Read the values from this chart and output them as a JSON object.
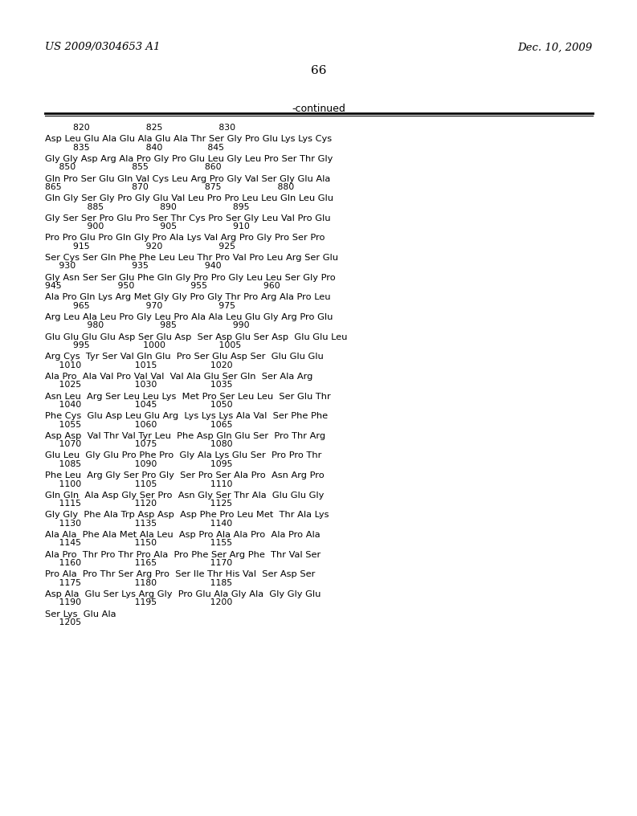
{
  "header_left": "US 2009/0304653 A1",
  "header_right": "Dec. 10, 2009",
  "page_number": "66",
  "continued_label": "-continued",
  "background_color": "#ffffff",
  "text_color": "#000000",
  "lines": [
    {
      "type": "numbers",
      "text": "          820                    825                    830"
    },
    {
      "type": "sequence",
      "text": "Asp Leu Glu Ala Glu Ala Glu Ala Thr Ser Gly Pro Glu Lys Lys Cys"
    },
    {
      "type": "numbers",
      "text": "          835                    840                845"
    },
    {
      "type": "sequence",
      "text": "Gly Gly Asp Arg Ala Pro Gly Pro Glu Leu Gly Leu Pro Ser Thr Gly"
    },
    {
      "type": "numbers",
      "text": "     850                    855                    860"
    },
    {
      "type": "sequence",
      "text": "Gln Pro Ser Glu Gln Val Cys Leu Arg Pro Gly Val Ser Gly Glu Ala"
    },
    {
      "type": "numbers",
      "text": "865                         870                    875                    880"
    },
    {
      "type": "sequence",
      "text": "Gln Gly Ser Gly Pro Gly Glu Val Leu Pro Pro Leu Leu Gln Leu Glu"
    },
    {
      "type": "numbers",
      "text": "               885                    890                    895"
    },
    {
      "type": "sequence",
      "text": "Gly Ser Ser Pro Glu Pro Ser Thr Cys Pro Ser Gly Leu Val Pro Glu"
    },
    {
      "type": "numbers",
      "text": "               900                    905                    910"
    },
    {
      "type": "sequence",
      "text": "Pro Pro Glu Pro Gln Gly Pro Ala Lys Val Arg Pro Gly Pro Ser Pro"
    },
    {
      "type": "numbers",
      "text": "          915                    920                    925"
    },
    {
      "type": "sequence",
      "text": "Ser Cys Ser Gln Phe Phe Leu Leu Thr Pro Val Pro Leu Arg Ser Glu"
    },
    {
      "type": "numbers",
      "text": "     930                    935                    940"
    },
    {
      "type": "sequence",
      "text": "Gly Asn Ser Ser Glu Phe Gln Gly Pro Pro Gly Leu Leu Ser Gly Pro"
    },
    {
      "type": "numbers",
      "text": "945                    950                    955                    960"
    },
    {
      "type": "sequence",
      "text": "Ala Pro Gln Lys Arg Met Gly Gly Pro Gly Thr Pro Arg Ala Pro Leu"
    },
    {
      "type": "numbers",
      "text": "          965                    970                    975"
    },
    {
      "type": "sequence",
      "text": "Arg Leu Ala Leu Pro Gly Leu Pro Ala Ala Leu Glu Gly Arg Pro Glu"
    },
    {
      "type": "numbers",
      "text": "               980                    985                    990"
    },
    {
      "type": "sequence",
      "text": "Glu Glu Glu Glu Asp Ser Glu Asp  Ser Asp Glu Ser Asp  Glu Glu Leu"
    },
    {
      "type": "numbers",
      "text": "          995                   1000                   1005"
    },
    {
      "type": "sequence",
      "text": "Arg Cys  Tyr Ser Val Gln Glu  Pro Ser Glu Asp Ser  Glu Glu Glu"
    },
    {
      "type": "numbers",
      "text": "     1010                   1015                   1020"
    },
    {
      "type": "sequence",
      "text": "Ala Pro  Ala Val Pro Val Val  Val Ala Glu Ser Gln  Ser Ala Arg"
    },
    {
      "type": "numbers",
      "text": "     1025                   1030                   1035"
    },
    {
      "type": "sequence",
      "text": "Asn Leu  Arg Ser Leu Leu Lys  Met Pro Ser Leu Leu  Ser Glu Thr"
    },
    {
      "type": "numbers",
      "text": "     1040                   1045                   1050"
    },
    {
      "type": "sequence",
      "text": "Phe Cys  Glu Asp Leu Glu Arg  Lys Lys Lys Ala Val  Ser Phe Phe"
    },
    {
      "type": "numbers",
      "text": "     1055                   1060                   1065"
    },
    {
      "type": "sequence",
      "text": "Asp Asp  Val Thr Val Tyr Leu  Phe Asp Gln Glu Ser  Pro Thr Arg"
    },
    {
      "type": "numbers",
      "text": "     1070                   1075                   1080"
    },
    {
      "type": "sequence",
      "text": "Glu Leu  Gly Glu Pro Phe Pro  Gly Ala Lys Glu Ser  Pro Pro Thr"
    },
    {
      "type": "numbers",
      "text": "     1085                   1090                   1095"
    },
    {
      "type": "sequence",
      "text": "Phe Leu  Arg Gly Ser Pro Gly  Ser Pro Ser Ala Pro  Asn Arg Pro"
    },
    {
      "type": "numbers",
      "text": "     1100                   1105                   1110"
    },
    {
      "type": "sequence",
      "text": "Gln Gln  Ala Asp Gly Ser Pro  Asn Gly Ser Thr Ala  Glu Glu Gly"
    },
    {
      "type": "numbers",
      "text": "     1115                   1120                   1125"
    },
    {
      "type": "sequence",
      "text": "Gly Gly  Phe Ala Trp Asp Asp  Asp Phe Pro Leu Met  Thr Ala Lys"
    },
    {
      "type": "numbers",
      "text": "     1130                   1135                   1140"
    },
    {
      "type": "sequence",
      "text": "Ala Ala  Phe Ala Met Ala Leu  Asp Pro Ala Ala Pro  Ala Pro Ala"
    },
    {
      "type": "numbers",
      "text": "     1145                   1150                   1155"
    },
    {
      "type": "sequence",
      "text": "Ala Pro  Thr Pro Thr Pro Ala  Pro Phe Ser Arg Phe  Thr Val Ser"
    },
    {
      "type": "numbers",
      "text": "     1160                   1165                   1170"
    },
    {
      "type": "sequence",
      "text": "Pro Ala  Pro Thr Ser Arg Pro  Ser Ile Thr His Val  Ser Asp Ser"
    },
    {
      "type": "numbers",
      "text": "     1175                   1180                   1185"
    },
    {
      "type": "sequence",
      "text": "Asp Ala  Glu Ser Lys Arg Gly  Pro Glu Ala Gly Ala  Gly Gly Glu"
    },
    {
      "type": "numbers",
      "text": "     1190                   1195                   1200"
    },
    {
      "type": "sequence",
      "text": "Ser Lys  Glu Ala"
    },
    {
      "type": "numbers",
      "text": "     1205"
    }
  ]
}
